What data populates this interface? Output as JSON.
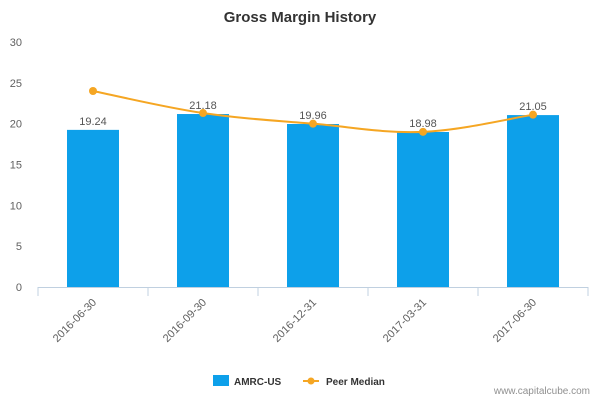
{
  "chart_data": {
    "type": "bar",
    "title": "Gross Margin History",
    "categories": [
      "2016-06-30",
      "2016-09-30",
      "2016-12-31",
      "2017-03-31",
      "2017-06-30"
    ],
    "series": [
      {
        "name": "AMRC-US",
        "kind": "bar",
        "color": "#0da0ea",
        "values": [
          19.24,
          21.18,
          19.96,
          18.98,
          21.05
        ],
        "labels": [
          "19.24",
          "21.18",
          "19.96",
          "18.98",
          "21.05"
        ]
      },
      {
        "name": "Peer Median",
        "kind": "line",
        "color": "#f5a623",
        "values": [
          24.0,
          21.3,
          20.0,
          19.0,
          21.1
        ]
      }
    ],
    "xlabel": "",
    "ylabel": "",
    "ylim": [
      0,
      30
    ],
    "yticks": [
      0,
      5,
      10,
      15,
      20,
      25,
      30
    ],
    "legend_position": "bottom-center"
  },
  "credit": "www.capitalcube.com",
  "colors": {
    "axis": "#c0d0e0",
    "text": "#606060"
  }
}
